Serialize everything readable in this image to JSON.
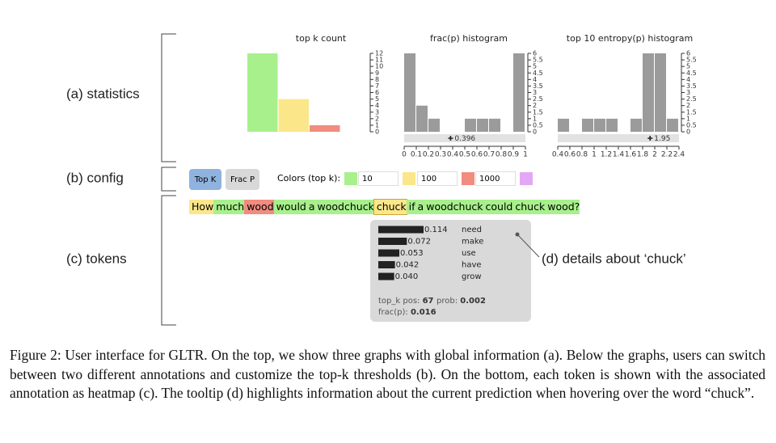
{
  "labels": {
    "statistics": "(a) statistics",
    "config": "(b) config",
    "tokens": "(c) tokens",
    "details": "(d) details about ‘chuck’"
  },
  "topk": {
    "title": "top k count",
    "values": [
      12,
      5,
      1
    ],
    "colors": [
      "#a8f08c",
      "#fbe78a",
      "#f08c80"
    ],
    "ylim": [
      0,
      12
    ],
    "yticks": [
      0,
      1,
      2,
      3,
      4,
      5,
      6,
      7,
      8,
      9,
      10,
      11,
      12
    ]
  },
  "frac": {
    "title": "frac(p) histogram",
    "bins": [
      0,
      0.1,
      0.2,
      0.3,
      0.4,
      0.5,
      0.6,
      0.7,
      0.8,
      0.9,
      1
    ],
    "counts": [
      6,
      2,
      1,
      0,
      0,
      1,
      1,
      1,
      0,
      6
    ],
    "color": "#9b9b9b",
    "xlim": [
      0,
      1
    ],
    "xticks": [
      0,
      0.1,
      0.2,
      0.3,
      0.4,
      0.5,
      0.6,
      0.7,
      0.8,
      0.9,
      1
    ],
    "ylim": [
      0,
      6
    ],
    "yticks": [
      0,
      0.5,
      1,
      1.5,
      2,
      2.5,
      3,
      3.5,
      4,
      4.5,
      5,
      5.5,
      6
    ],
    "marker": 0.396
  },
  "entropy": {
    "title": "top 10 entropy(p) histogram",
    "bins": [
      0.4,
      0.6,
      0.8,
      1,
      1.2,
      1.4,
      1.6,
      1.8,
      2,
      2.2,
      2.4
    ],
    "counts": [
      1,
      0,
      1,
      1,
      1,
      0,
      1,
      6,
      6,
      1
    ],
    "color": "#9b9b9b",
    "xlim": [
      0.4,
      2.4
    ],
    "xticks": [
      0.4,
      0.6,
      0.8,
      1,
      1.2,
      1.4,
      1.6,
      1.8,
      2,
      2.2,
      2.4
    ],
    "ylim": [
      0,
      6
    ],
    "yticks": [
      0,
      0.5,
      1,
      1.5,
      2,
      2.5,
      3,
      3.5,
      4,
      4.5,
      5,
      5.5,
      6
    ],
    "marker": 1.95
  },
  "config": {
    "buttons": [
      "Top K",
      "Frac P"
    ],
    "colors_label": "Colors (top k):",
    "thresholds": [
      "10",
      "100",
      "1000"
    ],
    "colors": [
      "#a8f08c",
      "#fbe78a",
      "#f08c80",
      "#e3a8f5"
    ]
  },
  "tokens": {
    "words": [
      "How",
      "much",
      "wood",
      "would",
      "a",
      "woodchuck",
      "chuck",
      "if",
      "a",
      "woodchuck",
      "could",
      "chuck",
      "wood?"
    ],
    "classes": [
      1,
      0,
      2,
      0,
      0,
      0,
      1,
      0,
      0,
      0,
      0,
      0,
      0
    ]
  },
  "tooltip": {
    "probs": [
      0.114,
      0.072,
      0.053,
      0.042,
      0.04
    ],
    "value_labels": [
      "0.114",
      "0.072",
      "0.053",
      "0.042",
      "0.040"
    ],
    "words": [
      "need",
      "make",
      "use",
      "have",
      "grow"
    ],
    "pos_label": "top_k pos:",
    "pos": 67,
    "prob_label": "prob:",
    "prob": 0.002,
    "frac_label": "frac(p):",
    "frac": 0.016
  },
  "caption": "Figure 2: User interface for GLTR. On the top, we show three graphs with global information (a). Below the graphs, users can switch between two different annotations and customize the top-k thresholds (b). On the bottom, each token is shown with the associated annotation as heatmap (c). The tooltip (d) highlights information about the current prediction when hovering over the word “chuck”."
}
